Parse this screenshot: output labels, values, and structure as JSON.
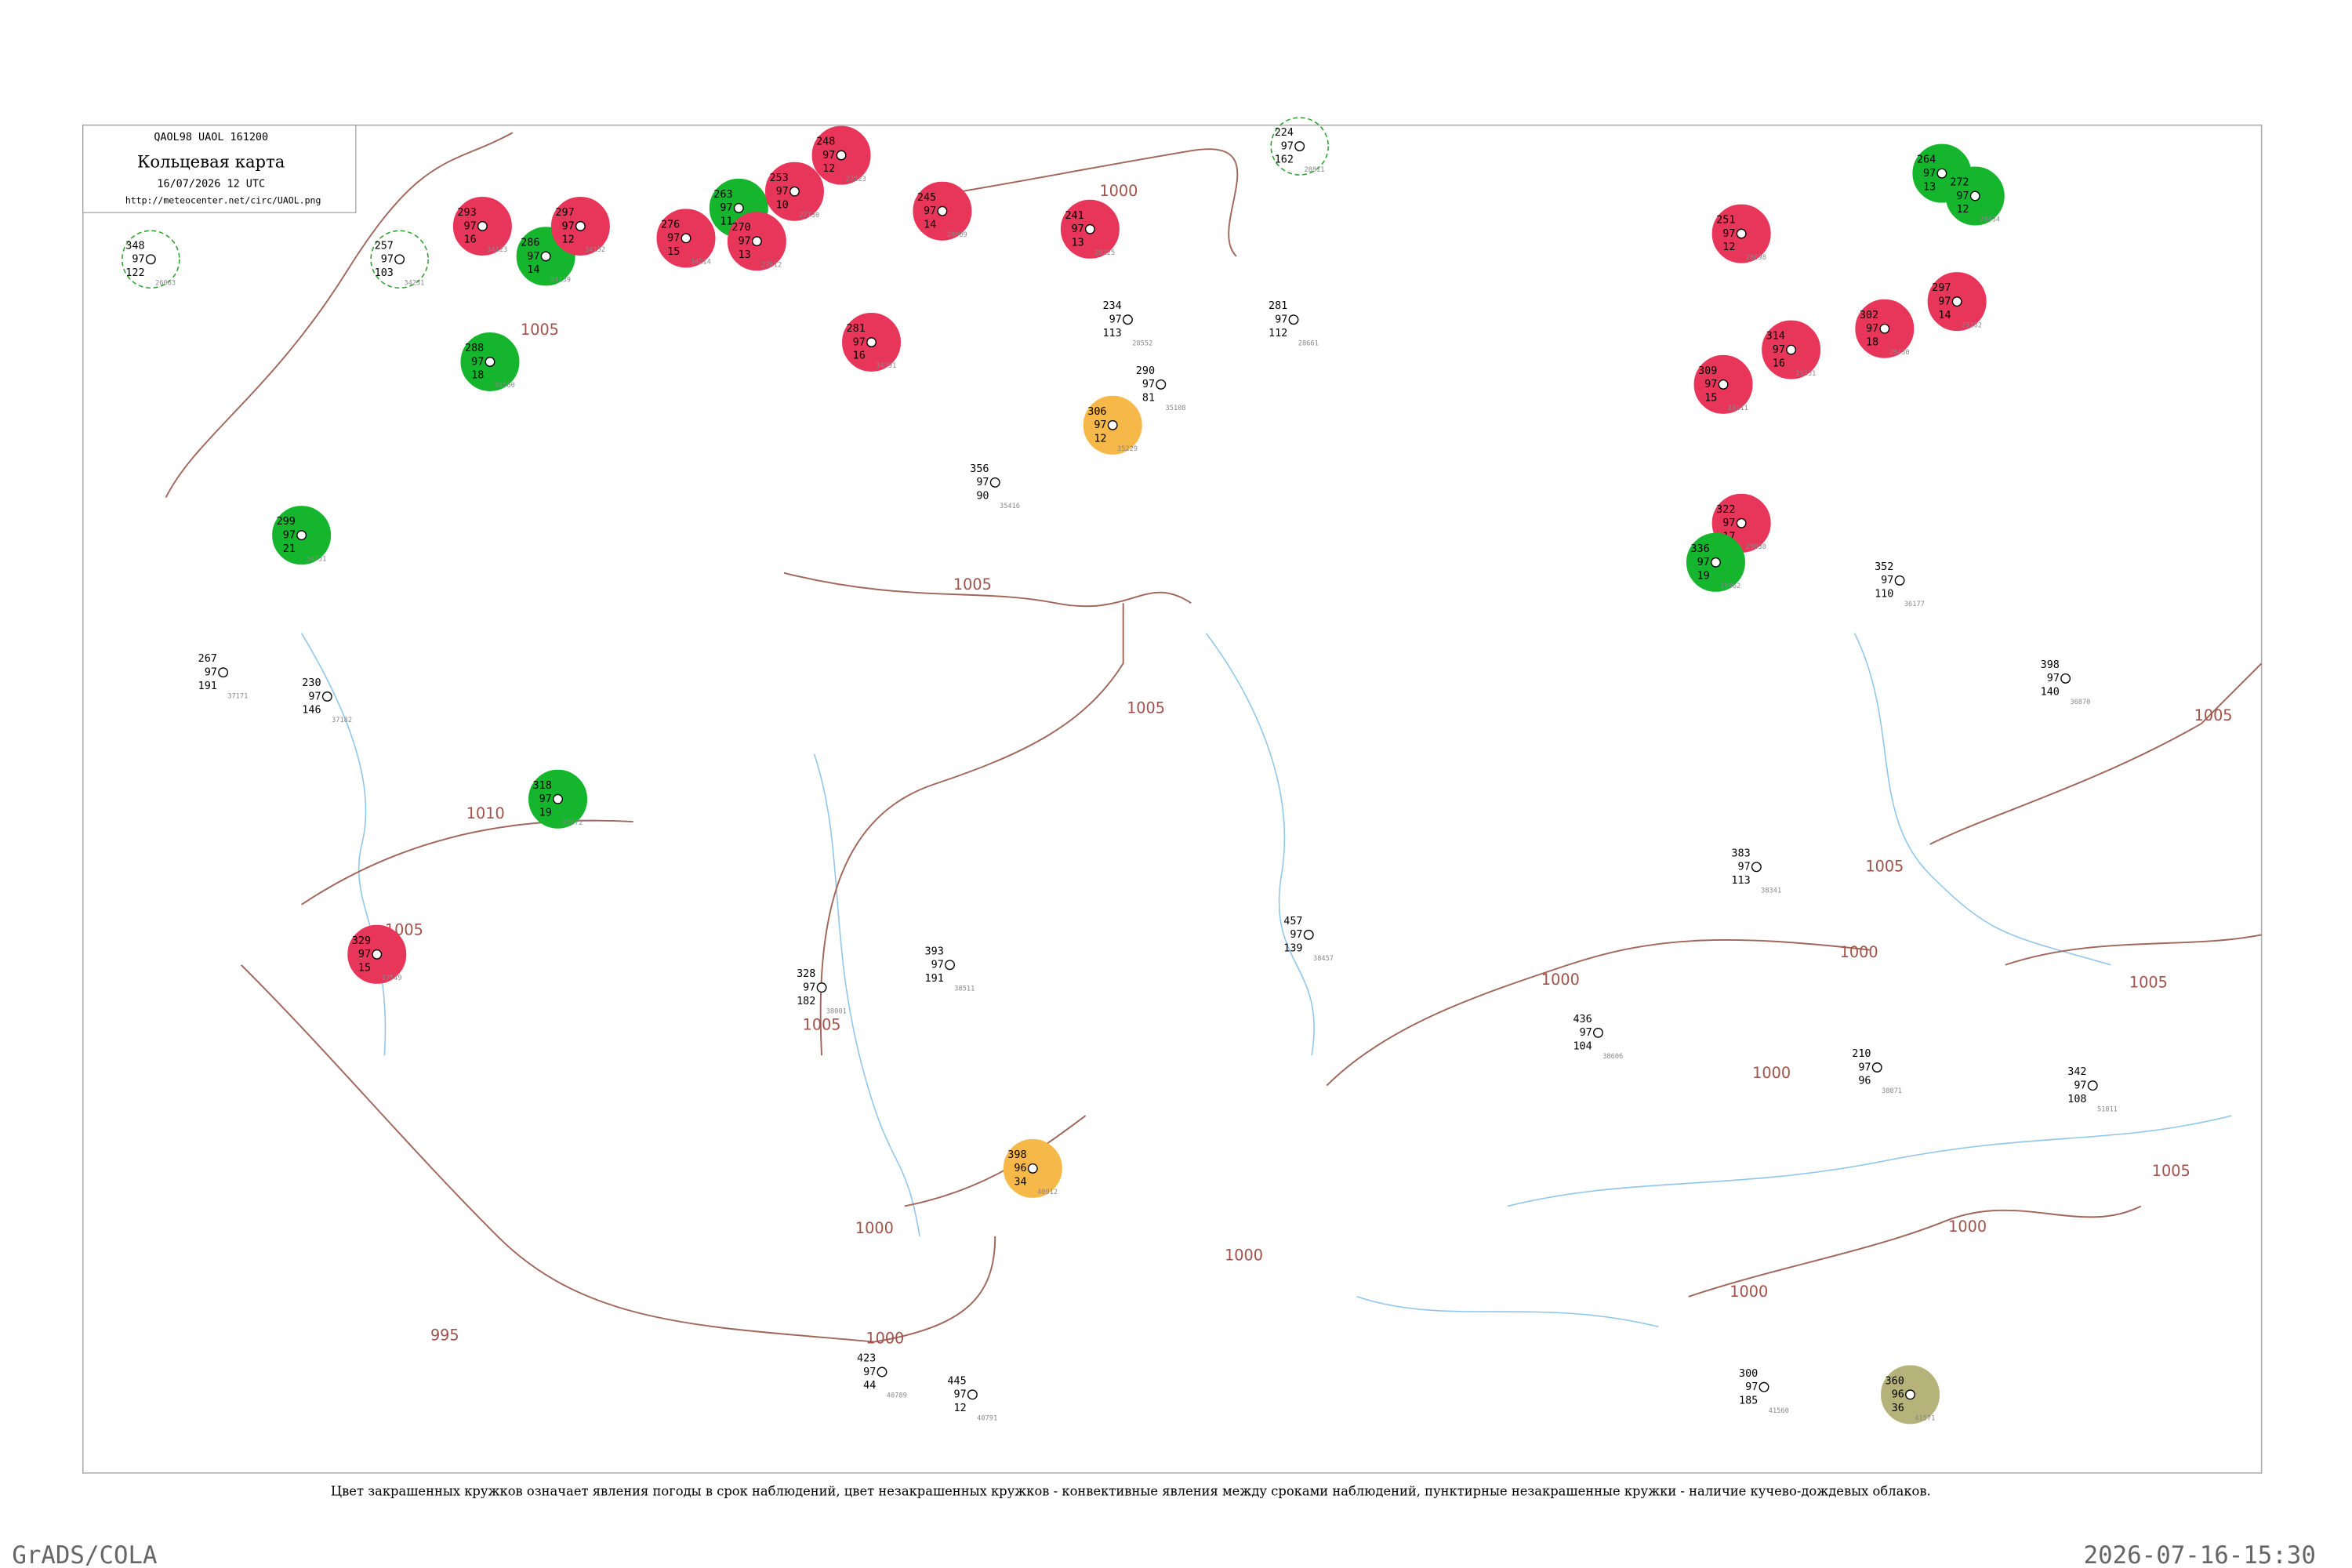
{
  "header": {
    "code": "QAOL98  UAOL  161200",
    "title": "Кольцевая карта",
    "time": "16/07/2026 12 UTC",
    "url": "http://meteocenter.net/circ/UAOL.png"
  },
  "isobar_labels": [
    "1000",
    "1005",
    "1010",
    "1005",
    "1005",
    "1005",
    "1005",
    "1000",
    "1000",
    "995",
    "1000",
    "1000",
    "1000",
    "1000",
    "1005",
    "1005",
    "1005",
    "1005",
    "1000",
    "1000"
  ],
  "stations": [
    {
      "pressure": "293",
      "temp": "97",
      "low": "16",
      "id": "34123",
      "fill": "#e8365a"
    },
    {
      "pressure": "286",
      "temp": "97",
      "low": "14",
      "id": "34139",
      "fill": "#16b52e"
    },
    {
      "pressure": "297",
      "temp": "97",
      "low": "12",
      "id": "34152",
      "fill": "#e8365a"
    },
    {
      "pressure": "276",
      "temp": "97",
      "low": "15",
      "id": "34214",
      "fill": "#e8365a"
    },
    {
      "pressure": "263",
      "temp": "97",
      "low": "11",
      "id": "27595",
      "fill": "#16b52e"
    },
    {
      "pressure": "270",
      "temp": "97",
      "low": "13",
      "id": "27612",
      "fill": "#e8365a"
    },
    {
      "pressure": "253",
      "temp": "97",
      "low": "10",
      "id": "27730",
      "fill": "#e8365a"
    },
    {
      "pressure": "248",
      "temp": "97",
      "low": "12",
      "id": "27823",
      "fill": "#e8365a"
    },
    {
      "pressure": "245",
      "temp": "97",
      "low": "14",
      "id": "28009",
      "fill": "#e8365a"
    },
    {
      "pressure": "241",
      "temp": "97",
      "low": "13",
      "id": "28225",
      "fill": "#e8365a"
    },
    {
      "pressure": "281",
      "temp": "97",
      "low": "16",
      "id": "34391",
      "fill": "#e8365a"
    },
    {
      "pressure": "306",
      "temp": "97",
      "low": "12",
      "id": "35229",
      "fill": "#f7b84a"
    },
    {
      "pressure": "288",
      "temp": "97",
      "low": "18",
      "id": "34560",
      "fill": "#16b52e"
    },
    {
      "pressure": "299",
      "temp": "97",
      "low": "21",
      "id": "34731",
      "fill": "#16b52e"
    },
    {
      "pressure": "318",
      "temp": "97",
      "low": "19",
      "id": "37472",
      "fill": "#16b52e"
    },
    {
      "pressure": "329",
      "temp": "97",
      "low": "15",
      "id": "37549",
      "fill": "#e8365a"
    },
    {
      "pressure": "398",
      "temp": "96",
      "low": "34",
      "id": "40912",
      "fill": "#f7b84a"
    },
    {
      "pressure": "251",
      "temp": "97",
      "low": "12",
      "id": "28698",
      "fill": "#e8365a"
    },
    {
      "pressure": "314",
      "temp": "97",
      "low": "16",
      "id": "29231",
      "fill": "#e8365a"
    },
    {
      "pressure": "302",
      "temp": "97",
      "low": "18",
      "id": "29430",
      "fill": "#e8365a"
    },
    {
      "pressure": "297",
      "temp": "97",
      "low": "14",
      "id": "29282",
      "fill": "#e8365a"
    },
    {
      "pressure": "309",
      "temp": "97",
      "low": "15",
      "id": "29111",
      "fill": "#e8365a"
    },
    {
      "pressure": "322",
      "temp": "97",
      "low": "17",
      "id": "29838",
      "fill": "#e8365a"
    },
    {
      "pressure": "336",
      "temp": "97",
      "low": "19",
      "id": "29862",
      "fill": "#16b52e"
    },
    {
      "pressure": "264",
      "temp": "97",
      "low": "13",
      "id": "28440",
      "fill": "#16b52e"
    },
    {
      "pressure": "272",
      "temp": "97",
      "low": "12",
      "id": "28434",
      "fill": "#16b52e"
    },
    {
      "pressure": "360",
      "temp": "96",
      "low": "36",
      "id": "41571",
      "fill": "#b5b27a"
    },
    {
      "pressure": "348",
      "temp": "97",
      "low": "122",
      "id": "26063",
      "ring": "#2ca02c"
    },
    {
      "pressure": "257",
      "temp": "97",
      "low": "103",
      "id": "34231",
      "ring": "#2ca02c"
    },
    {
      "pressure": "224",
      "temp": "97",
      "low": "162",
      "id": "28811",
      "ring": "#2ca02c"
    },
    {
      "pressure": "234",
      "temp": "97",
      "low": "113",
      "id": "28552"
    },
    {
      "pressure": "281",
      "temp": "97",
      "low": "112",
      "id": "28661"
    },
    {
      "pressure": "290",
      "temp": "97",
      "low": "81",
      "id": "35108"
    },
    {
      "pressure": "356",
      "temp": "97",
      "low": "90",
      "id": "35416"
    },
    {
      "pressure": "328",
      "temp": "97",
      "low": "182",
      "id": "38001"
    },
    {
      "pressure": "393",
      "temp": "97",
      "low": "191",
      "id": "38511"
    },
    {
      "pressure": "457",
      "temp": "97",
      "low": "139",
      "id": "38457"
    },
    {
      "pressure": "436",
      "temp": "97",
      "low": "104",
      "id": "38606"
    },
    {
      "pressure": "383",
      "temp": "97",
      "low": "113",
      "id": "38341"
    },
    {
      "pressure": "352",
      "temp": "97",
      "low": "110",
      "id": "36177"
    },
    {
      "pressure": "398",
      "temp": "97",
      "low": "140",
      "id": "36870"
    },
    {
      "pressure": "210",
      "temp": "97",
      "low": "96",
      "id": "38871"
    },
    {
      "pressure": "342",
      "temp": "97",
      "low": "108",
      "id": "51811"
    },
    {
      "pressure": "300",
      "temp": "97",
      "low": "185",
      "id": "41560"
    },
    {
      "pressure": "445",
      "temp": "97",
      "low": "12",
      "id": "40791"
    },
    {
      "pressure": "423",
      "temp": "97",
      "low": "44",
      "id": "40789"
    },
    {
      "pressure": "230",
      "temp": "97",
      "low": "146",
      "id": "37182"
    },
    {
      "pressure": "267",
      "temp": "97",
      "low": "191",
      "id": "37171"
    }
  ],
  "legend_note": "Цвет закрашенных кружков означает явления погоды в срок наблюдений, цвет незакрашенных кружков - конвективные явления между сроками наблюдений, пунктирные незакрашенные кружки - наличие кучево-дождевых облаков.",
  "footer": {
    "left": "GrADS/COLA",
    "right": "2026-07-16-15:30"
  }
}
